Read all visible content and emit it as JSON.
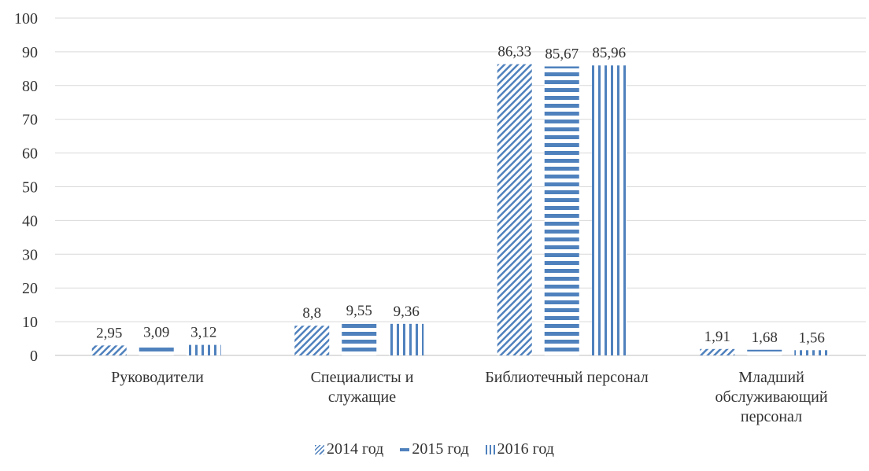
{
  "chart_data": {
    "type": "bar",
    "title": "",
    "xlabel": "",
    "ylabel": "",
    "ylim": [
      0,
      100
    ],
    "yticks": [
      0,
      10,
      20,
      30,
      40,
      50,
      60,
      70,
      80,
      90,
      100
    ],
    "grid": true,
    "legend_position": "bottom",
    "categories": [
      "Руководители",
      "Специалисты и служащие",
      "Библиотечный персонал",
      "Младший обслуживающий персонал"
    ],
    "series": [
      {
        "name": "2014 год",
        "values": [
          2.95,
          8.8,
          86.33,
          1.91
        ],
        "labels": [
          "2,95",
          "8,8",
          "86,33",
          "1,91"
        ],
        "pattern": "diagonal",
        "color": "#4f81bd"
      },
      {
        "name": "2015 год",
        "values": [
          3.09,
          9.55,
          85.67,
          1.68
        ],
        "labels": [
          "3,09",
          "9,55",
          "85,67",
          "1,68"
        ],
        "pattern": "horizontal",
        "color": "#4f81bd"
      },
      {
        "name": "2016 год",
        "values": [
          3.12,
          9.36,
          85.96,
          1.56
        ],
        "labels": [
          "3,12",
          "9,36",
          "85,96",
          "1,56"
        ],
        "pattern": "vertical",
        "color": "#4f81bd"
      }
    ]
  },
  "category_labels": {
    "c0": [
      "Руководители"
    ],
    "c1": [
      "Специалисты и",
      "служащие"
    ],
    "c2": [
      "Библиотечный персонал"
    ],
    "c3": [
      "Младший",
      "обслуживающий",
      "персонал"
    ]
  },
  "legend": [
    "2014 год",
    "2015 год",
    "2016 год"
  ]
}
